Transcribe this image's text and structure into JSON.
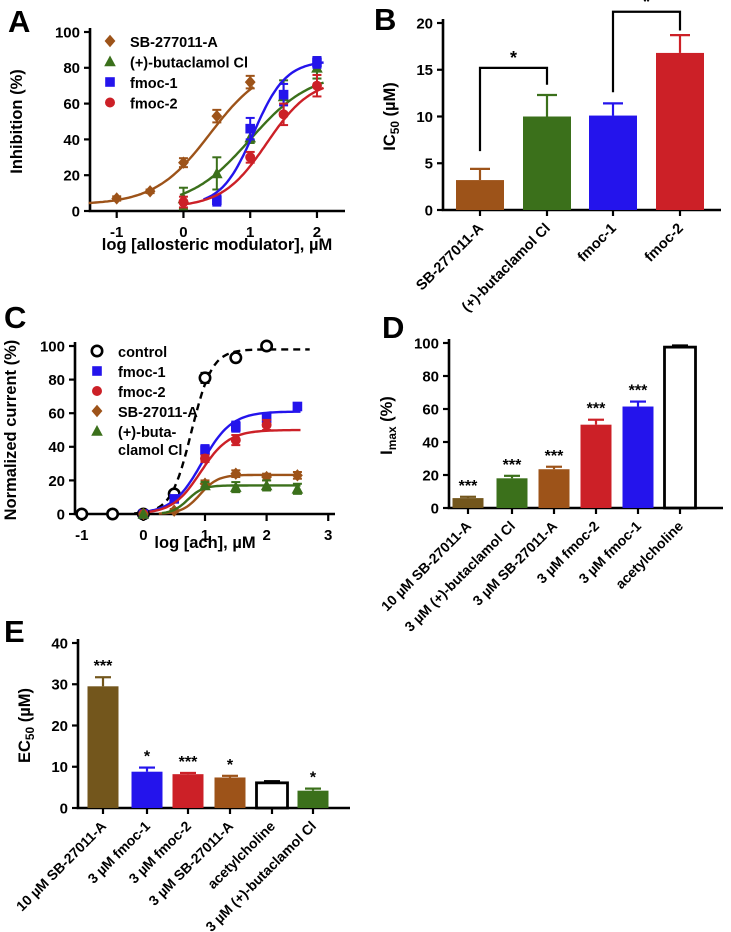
{
  "chart_data": [
    {
      "panel": "A",
      "type": "scatter",
      "xlabel": "log [allosteric modulator], µM",
      "ylabel_parts": [
        {
          "t": "Inhibition (%)"
        }
      ],
      "xlim": [
        -1.4,
        2.42
      ],
      "ylim": [
        0,
        100
      ],
      "xticks": [
        -1,
        0,
        1,
        2
      ],
      "yticks": [
        0,
        20,
        40,
        60,
        80,
        100
      ],
      "legend_position": "top-left-inside",
      "series": [
        {
          "name": "SB-277011-A",
          "label": [
            "SB-277011-A"
          ],
          "color": "#9d5319",
          "marker": "diamond",
          "points": [
            {
              "x": -1,
              "y": 7,
              "e": 1.2
            },
            {
              "x": -0.5,
              "y": 11,
              "e": 1
            },
            {
              "x": 0,
              "y": 27,
              "e": 2.5
            },
            {
              "x": 0.5,
              "y": 53,
              "e": 3.5
            },
            {
              "x": 1,
              "y": 72,
              "e": 3.5
            }
          ],
          "fit": {
            "bottom": 3.5,
            "top": 83,
            "logec50": 0.4,
            "hill": 1.05,
            "range": [
              -1.42,
              1.05
            ],
            "dash": false
          }
        },
        {
          "name": "(+)-butaclamol Cl",
          "label": [
            "(+)-butaclamol Cl"
          ],
          "color": "#3b701b",
          "marker": "triangle",
          "points": [
            {
              "x": 0,
              "y": 7,
              "e": 6
            },
            {
              "x": 0.5,
              "y": 21,
              "e": 9
            },
            {
              "x": 1,
              "y": 41,
              "e": 3
            },
            {
              "x": 1.5,
              "y": 64,
              "e": 9
            },
            {
              "x": 2,
              "y": 80,
              "e": 6
            }
          ],
          "fit": {
            "bottom": 2,
            "top": 78,
            "logec50": 1.0,
            "hill": 0.95,
            "range": [
              -0.05,
              2.1
            ],
            "dash": false
          }
        },
        {
          "name": "fmoc-1",
          "label": [
            "fmoc-1"
          ],
          "color": "#2414ec",
          "marker": "square",
          "points": [
            {
              "x": 0.5,
              "y": 6,
              "e": 3
            },
            {
              "x": 1,
              "y": 46,
              "e": 6
            },
            {
              "x": 1.5,
              "y": 65,
              "e": 6
            },
            {
              "x": 2,
              "y": 83,
              "e": 3
            }
          ],
          "fit": {
            "bottom": 3,
            "top": 84,
            "logec50": 1.05,
            "hill": 1.8,
            "range": [
              0.3,
              2.1
            ],
            "dash": false
          }
        },
        {
          "name": "fmoc-2",
          "label": [
            "fmoc-2"
          ],
          "color": "#cc2027",
          "marker": "circle",
          "points": [
            {
              "x": 0,
              "y": 5,
              "e": 3
            },
            {
              "x": 1,
              "y": 30,
              "e": 3
            },
            {
              "x": 1.5,
              "y": 54,
              "e": 6
            },
            {
              "x": 2,
              "y": 70,
              "e": 6
            }
          ],
          "fit": {
            "bottom": 2,
            "top": 74,
            "logec50": 1.25,
            "hill": 1.3,
            "range": [
              -0.05,
              2.1
            ],
            "dash": false
          }
        }
      ]
    },
    {
      "panel": "B",
      "type": "bar",
      "ylabel_parts": [
        {
          "t": "IC"
        },
        {
          "t": "50",
          "sub": true
        },
        {
          "t": " (µM)"
        }
      ],
      "ylim": [
        0,
        20
      ],
      "yticks": [
        0,
        5,
        10,
        15,
        20
      ],
      "categories": [
        "SB-277011-A",
        "(+)-butaclamol Cl",
        "fmoc-1",
        "fmoc-2"
      ],
      "values": [
        3.2,
        10,
        10.1,
        16.8
      ],
      "errors": [
        1.2,
        2.3,
        1.3,
        1.9
      ],
      "colors": [
        "#9d5319",
        "#3b701b",
        "#2414ec",
        "#cc2027"
      ],
      "stars": [
        "",
        "",
        "",
        ""
      ],
      "brackets": [
        {
          "from": 0,
          "to": 1,
          "top": 15.2,
          "drop_from": 6.3,
          "drop_to": 13.4,
          "label": "*"
        },
        {
          "from": 2,
          "to": 3,
          "top": 21.2,
          "drop_from": 12.6,
          "drop_to": 19.2,
          "label": "*"
        }
      ]
    },
    {
      "panel": "C",
      "type": "scatter",
      "xlabel": "log [ach], µM",
      "ylabel_parts": [
        {
          "t": "Normalized current (%)"
        }
      ],
      "xlim": [
        -1.11,
        3.11
      ],
      "ylim": [
        0,
        100
      ],
      "xticks": [
        -1,
        0,
        1,
        2,
        3
      ],
      "yticks": [
        0,
        20,
        40,
        60,
        80,
        100
      ],
      "legend_position": "top-left-inside",
      "series": [
        {
          "name": "control",
          "label": [
            "control"
          ],
          "color": "#000000",
          "marker": "circle-open",
          "points": [
            {
              "x": -1,
              "y": 0,
              "e": 0
            },
            {
              "x": -0.5,
              "y": 0,
              "e": 0
            },
            {
              "x": 0,
              "y": 0,
              "e": 0
            },
            {
              "x": 0.5,
              "y": 12,
              "e": 2
            },
            {
              "x": 1,
              "y": 81,
              "e": 3
            },
            {
              "x": 1.5,
              "y": 93,
              "e": 2
            },
            {
              "x": 2,
              "y": 100,
              "e": 2
            }
          ],
          "fit": {
            "bottom": 0,
            "top": 98,
            "logec50": 0.78,
            "hill": 2.6,
            "range": [
              -0.15,
              2.7
            ],
            "dash": true
          }
        },
        {
          "name": "fmoc-1",
          "label": [
            "fmoc-1"
          ],
          "color": "#2414ec",
          "marker": "square",
          "points": [
            {
              "x": 0,
              "y": 0,
              "e": 0
            },
            {
              "x": 0.5,
              "y": 9,
              "e": 2
            },
            {
              "x": 1,
              "y": 38,
              "e": 3
            },
            {
              "x": 1.5,
              "y": 52,
              "e": 3
            },
            {
              "x": 2,
              "y": 57,
              "e": 3
            },
            {
              "x": 2.5,
              "y": 64,
              "e": 2
            }
          ],
          "fit": {
            "bottom": 0,
            "top": 61,
            "logec50": 0.95,
            "hill": 1.8,
            "range": [
              0.1,
              2.55
            ],
            "dash": false
          }
        },
        {
          "name": "fmoc-2",
          "label": [
            "fmoc-2"
          ],
          "color": "#cc2027",
          "marker": "circle",
          "points": [
            {
              "x": 0,
              "y": 0,
              "e": 0
            },
            {
              "x": 1,
              "y": 33,
              "e": 2
            },
            {
              "x": 1.5,
              "y": 44,
              "e": 3
            },
            {
              "x": 2,
              "y": 53,
              "e": 3
            }
          ],
          "fit": {
            "bottom": 0,
            "top": 50,
            "logec50": 0.93,
            "hill": 1.9,
            "range": [
              0.1,
              2.55
            ],
            "dash": false
          }
        },
        {
          "name": "SB-27011-A",
          "label": [
            "SB-27011-A"
          ],
          "color": "#9d5319",
          "marker": "diamond",
          "points": [
            {
              "x": 0,
              "y": 0,
              "e": 0
            },
            {
              "x": 0.5,
              "y": 2,
              "e": 1
            },
            {
              "x": 1,
              "y": 18,
              "e": 2
            },
            {
              "x": 1.5,
              "y": 24,
              "e": 2
            },
            {
              "x": 2,
              "y": 22,
              "e": 2
            },
            {
              "x": 2.5,
              "y": 23,
              "e": 2
            }
          ],
          "fit": {
            "bottom": 0,
            "top": 23.3,
            "logec50": 0.92,
            "hill": 3.0,
            "range": [
              0.25,
              2.55
            ],
            "dash": false
          }
        },
        {
          "name": "(+)-butaclamol Cl",
          "label": [
            "(+)-buta-",
            "clamol Cl"
          ],
          "color": "#3b701b",
          "marker": "triangle",
          "points": [
            {
              "x": 0,
              "y": 0,
              "e": 0
            },
            {
              "x": 1,
              "y": 17,
              "e": 2
            },
            {
              "x": 1.5,
              "y": 16,
              "e": 3
            },
            {
              "x": 2,
              "y": 17,
              "e": 3
            },
            {
              "x": 2.5,
              "y": 15,
              "e": 3
            }
          ],
          "fit": {
            "bottom": 0,
            "top": 17,
            "logec50": 0.72,
            "hill": 3.5,
            "range": [
              0.3,
              2.55
            ],
            "dash": false
          }
        }
      ]
    },
    {
      "panel": "D",
      "type": "bar",
      "ylabel_parts": [
        {
          "t": "I"
        },
        {
          "t": "max",
          "sub": true
        },
        {
          "t": " (%)"
        }
      ],
      "ylim": [
        0,
        100
      ],
      "yticks": [
        0,
        20,
        40,
        60,
        80,
        100
      ],
      "categories": [
        "10 µM SB-27011-A",
        "3 µM (+)-butaclamol Cl",
        "3 µM SB-27011-A",
        "3 µM fmoc-2",
        "3 µM fmoc-1",
        "acetylcholine"
      ],
      "values": [
        6,
        18,
        23.5,
        50.5,
        61.5,
        97.5
      ],
      "errors": [
        0.8,
        1.5,
        1.5,
        3,
        3,
        1
      ],
      "colors": [
        "#73561c",
        "#3b701b",
        "#9d5319",
        "#cc2027",
        "#2414ec",
        "#ffffff"
      ],
      "stars": [
        "***",
        "***",
        "***",
        "***",
        "***",
        ""
      ],
      "brackets": []
    },
    {
      "panel": "E",
      "type": "bar",
      "ylabel_parts": [
        {
          "t": "EC"
        },
        {
          "t": "50",
          "sub": true
        },
        {
          "t": " (µM)"
        }
      ],
      "ylim": [
        0,
        40
      ],
      "yticks": [
        0,
        10,
        20,
        30,
        40
      ],
      "categories": [
        "10 µM SB-27011-A",
        "3 µM fmoc-1",
        "3 µM fmoc-2",
        "3 µM SB-27011-A",
        "acetylcholine",
        "3 µM (+)-butaclamol Cl"
      ],
      "values": [
        29.5,
        8.8,
        8.2,
        7.4,
        6.1,
        4.2
      ],
      "errors": [
        2.2,
        1.0,
        0.3,
        0.4,
        0.4,
        0.5
      ],
      "colors": [
        "#73561c",
        "#2414ec",
        "#cc2027",
        "#9d5319",
        "#ffffff",
        "#3b701b"
      ],
      "stars": [
        "***",
        "*",
        "***",
        "*",
        "",
        "*"
      ],
      "brackets": []
    }
  ]
}
